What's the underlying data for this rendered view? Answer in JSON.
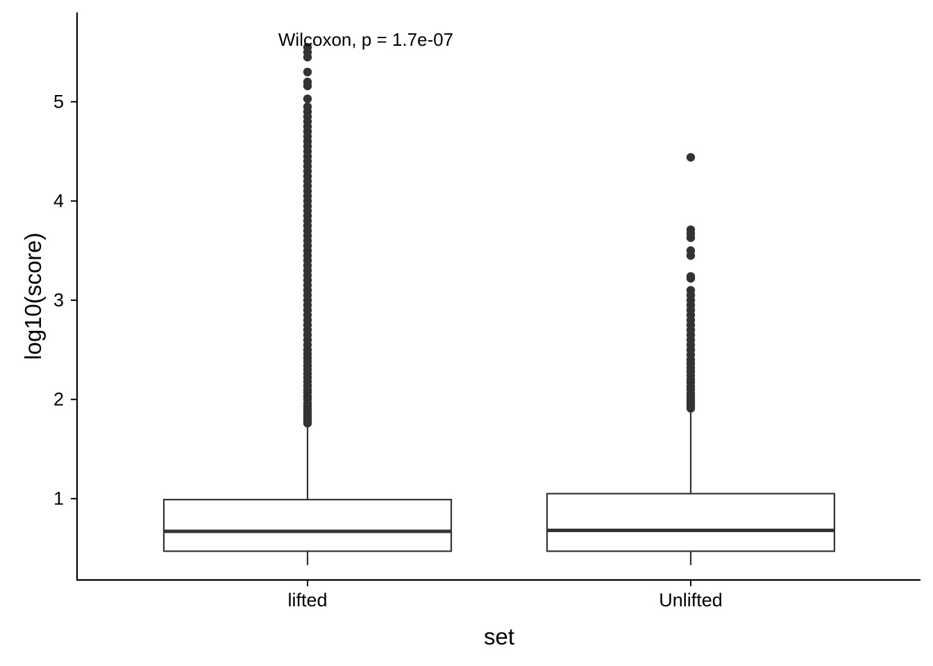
{
  "chart_data": {
    "type": "boxplot",
    "xlabel": "set",
    "ylabel": "log10(score)",
    "ylim": [
      0.18,
      5.9
    ],
    "yticks": [
      1,
      2,
      3,
      4,
      5
    ],
    "categories": [
      "lifted",
      "Unlifted"
    ],
    "annotation": "Wilcoxon, p = 1.7e-07",
    "grid": false,
    "boxes": [
      {
        "category": "lifted",
        "min": 0.33,
        "q1": 0.47,
        "median": 0.67,
        "q3": 0.99,
        "max": 1.75,
        "outliers": [
          1.76,
          1.78,
          1.8,
          1.82,
          1.85,
          1.88,
          1.9,
          1.93,
          1.96,
          2.0,
          2.03,
          2.07,
          2.1,
          2.14,
          2.18,
          2.22,
          2.26,
          2.3,
          2.34,
          2.38,
          2.42,
          2.46,
          2.5,
          2.55,
          2.6,
          2.65,
          2.7,
          2.75,
          2.8,
          2.85,
          2.9,
          2.95,
          3.0,
          3.05,
          3.1,
          3.15,
          3.2,
          3.25,
          3.3,
          3.35,
          3.4,
          3.45,
          3.5,
          3.55,
          3.6,
          3.65,
          3.7,
          3.75,
          3.8,
          3.85,
          3.9,
          3.95,
          4.0,
          4.05,
          4.1,
          4.15,
          4.2,
          4.25,
          4.3,
          4.35,
          4.4,
          4.45,
          4.5,
          4.55,
          4.6,
          4.65,
          4.7,
          4.75,
          4.8,
          4.85,
          4.9,
          4.95,
          5.03,
          5.16,
          5.2,
          5.3,
          5.45,
          5.5,
          5.55
        ]
      },
      {
        "category": "Unlifted",
        "min": 0.33,
        "q1": 0.47,
        "median": 0.68,
        "q3": 1.05,
        "max": 1.9,
        "outliers": [
          1.91,
          1.93,
          1.95,
          1.98,
          2.0,
          2.03,
          2.06,
          2.1,
          2.13,
          2.17,
          2.2,
          2.24,
          2.28,
          2.32,
          2.36,
          2.4,
          2.45,
          2.5,
          2.55,
          2.6,
          2.65,
          2.7,
          2.75,
          2.8,
          2.85,
          2.9,
          2.95,
          3.0,
          3.05,
          3.1,
          3.22,
          3.24,
          3.45,
          3.5,
          3.63,
          3.67,
          3.71,
          4.44
        ]
      }
    ]
  }
}
